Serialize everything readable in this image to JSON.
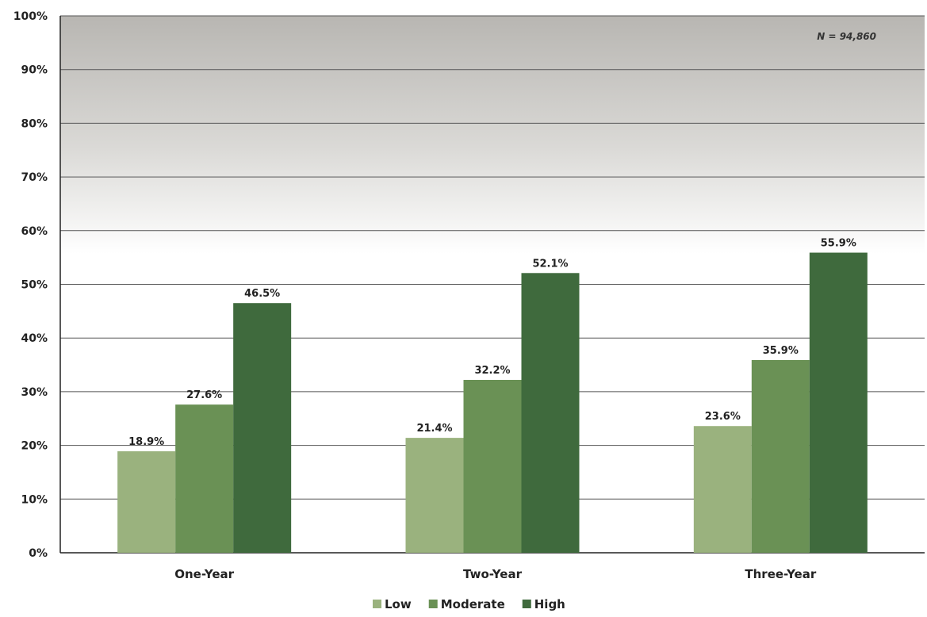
{
  "chart_data": {
    "type": "bar",
    "categories": [
      "One-Year",
      "Two-Year",
      "Three-Year"
    ],
    "series": [
      {
        "name": "Low",
        "values": [
          18.9,
          21.4,
          23.6
        ],
        "labels": [
          "18.9%",
          "21.4%",
          "23.6%"
        ],
        "color": "#9ab27e"
      },
      {
        "name": "Moderate",
        "values": [
          27.6,
          32.2,
          35.9
        ],
        "labels": [
          "27.6%",
          "32.2%",
          "35.9%"
        ],
        "color": "#6a9155"
      },
      {
        "name": "High",
        "values": [
          46.5,
          52.1,
          55.9
        ],
        "labels": [
          "46.5%",
          "52.1%",
          "55.9%"
        ],
        "color": "#3f6a3d"
      }
    ],
    "yticks": [
      0,
      10,
      20,
      30,
      40,
      50,
      60,
      70,
      80,
      90,
      100
    ],
    "ytick_labels": [
      "0%",
      "10%",
      "20%",
      "30%",
      "40%",
      "50%",
      "60%",
      "70%",
      "80%",
      "90%",
      "100%"
    ],
    "ylim": [
      0,
      100
    ],
    "annotation": "N = 94,860",
    "grid": true,
    "legend_position": "bottom"
  }
}
